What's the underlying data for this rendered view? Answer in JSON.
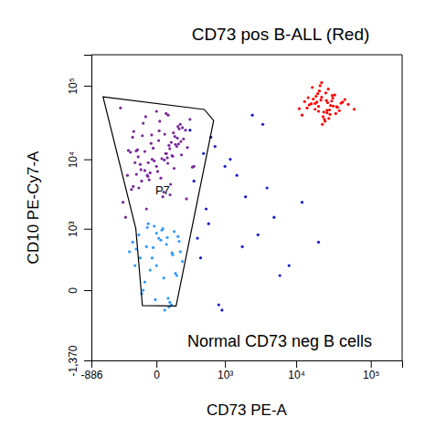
{
  "chart_data": {
    "type": "scatter",
    "x_label": "CD73 PE-A",
    "y_label": "CD10 PE-Cy7-A",
    "annotations": [
      "CD73 pos B-ALL (Red)",
      "Normal CD73 neg B cells"
    ],
    "xlim": [
      -886,
      262144
    ],
    "ylim": [
      -1370,
      262144
    ],
    "xticks": [
      -886,
      0,
      {
        "value": 1000,
        "label": "10³"
      },
      {
        "value": 10000,
        "label": "10⁴"
      },
      {
        "value": 100000,
        "label": "10⁵"
      }
    ],
    "yticks": [
      {
        "value": -1370,
        "label": "-1,370"
      },
      0,
      {
        "value": 1000,
        "label": "10³"
      },
      {
        "value": 10000,
        "label": "10⁴"
      },
      {
        "value": 100000,
        "label": "10⁵"
      }
    ],
    "gate": {
      "label": "P7",
      "x": [
        -578,
        464,
        665,
        115,
        -75,
        -123
      ],
      "y": [
        70600,
        47700,
        33800,
        -110,
        -106,
        1000
      ]
    },
    "series": [
      {
        "color": "#7a2a9a",
        "x": [
          0,
          50,
          -80,
          120,
          -150,
          30,
          -40,
          200,
          -200,
          90,
          10,
          -60,
          150,
          -100,
          70,
          -20,
          250,
          -250,
          40,
          -120,
          110,
          -30,
          60,
          -90,
          180,
          20,
          -170,
          130,
          -50,
          80,
          0,
          -10,
          100,
          -140,
          160,
          35,
          -75,
          220,
          -220,
          55,
          15,
          -45,
          140,
          -110,
          75,
          -25,
          300,
          -280,
          45,
          -130,
          95,
          -35,
          65,
          -85,
          170,
          25,
          -160,
          125,
          -55,
          85,
          5,
          -15,
          105,
          -145,
          155,
          38,
          -70,
          210,
          -190,
          58,
          12,
          -42,
          135,
          -105,
          72,
          -22,
          280,
          -60,
          48,
          -118
        ],
        "y": [
          8000,
          12000,
          5000,
          15000,
          20000,
          3000,
          9000,
          25000,
          6000,
          11000,
          18000,
          7000,
          30000,
          4000,
          14000,
          10000,
          35000,
          2500,
          22000,
          13000,
          16000,
          6500,
          40000,
          8500,
          19000,
          5500,
          12500,
          28000,
          2000,
          17000,
          45000,
          9500,
          7500,
          24000,
          11500,
          3500,
          21000,
          14500,
          1500,
          10500,
          33000,
          6000,
          26000,
          13500,
          4500,
          16500,
          8000,
          50000,
          12000,
          9000,
          23000,
          5200,
          15500,
          7200,
          27000,
          10200,
          3800,
          19500,
          38000,
          11200,
          6800,
          14200,
          20500,
          4200,
          17500,
          9800,
          31000,
          2800,
          13200,
          8800,
          24500,
          5800,
          16200,
          10800,
          3200,
          21500,
          7800,
          12800,
          42000,
          6200
        ]
      },
      {
        "color": "#3399ff",
        "x": [
          0,
          -50,
          60,
          -100,
          120,
          30,
          -20,
          80,
          -150,
          150,
          10,
          -70,
          100,
          -30,
          40,
          -120,
          170,
          -10,
          50,
          -80,
          90,
          20,
          -60,
          130,
          -40,
          70,
          -180,
          0,
          110,
          -90,
          25,
          -15,
          65,
          -130,
          140,
          35,
          -45,
          85,
          -5,
          55
        ],
        "y": [
          200,
          500,
          -50,
          800,
          100,
          1000,
          300,
          -100,
          600,
          400,
          700,
          0,
          900,
          150,
          -150,
          450,
          250,
          1100,
          550,
          -20,
          350,
          650,
          50,
          750,
          1200,
          -80,
          400,
          850,
          120,
          300,
          950,
          480,
          -120,
          200,
          620,
          80,
          1050,
          380,
          -60,
          720
        ]
      },
      {
        "color": "#1a1acc",
        "x": [
          300,
          500,
          800,
          1200,
          2000,
          3000,
          5000,
          8000,
          600,
          400,
          1500,
          2500,
          700,
          900,
          4000,
          250,
          350,
          1000,
          6000,
          12000,
          450,
          1800,
          3500,
          550,
          20000
        ],
        "y": [
          5000,
          2000,
          -100,
          10000,
          3000,
          800,
          1500,
          200,
          20000,
          300,
          6000,
          40000,
          15000,
          -150,
          4000,
          25000,
          700,
          8000,
          100,
          2500,
          12000,
          500,
          30000,
          1200,
          600
        ]
      },
      {
        "color": "#ff0000",
        "x": [
          15000,
          22000,
          18000,
          30000,
          25000,
          12000,
          40000,
          20000,
          27000,
          35000,
          17000,
          23000,
          19000,
          28000,
          33000,
          14000,
          21000,
          26000,
          45000,
          16000,
          24000,
          31000,
          13000,
          29000,
          38000,
          20500,
          22500,
          18500,
          34000,
          26500,
          11000,
          50000,
          21500,
          27500,
          19500,
          36000,
          23500,
          16500,
          31500,
          25500,
          60000,
          14500,
          28500,
          22000,
          18000,
          42000,
          24500,
          30500,
          20000,
          26000
        ],
        "y": [
          55000,
          70000,
          48000,
          62000,
          80000,
          40000,
          58000,
          45000,
          90000,
          52000,
          66000,
          38000,
          60000,
          47000,
          75000,
          50000,
          100000,
          43000,
          65000,
          57000,
          35000,
          68000,
          61000,
          54000,
          46000,
          85000,
          30000,
          72000,
          42000,
          59000,
          49000,
          56000,
          64000,
          36000,
          78000,
          51000,
          44000,
          95000,
          53000,
          63000,
          48000,
          69000,
          41000,
          110000,
          57500,
          60000,
          33000,
          74000,
          52500,
          46500
        ]
      }
    ]
  }
}
